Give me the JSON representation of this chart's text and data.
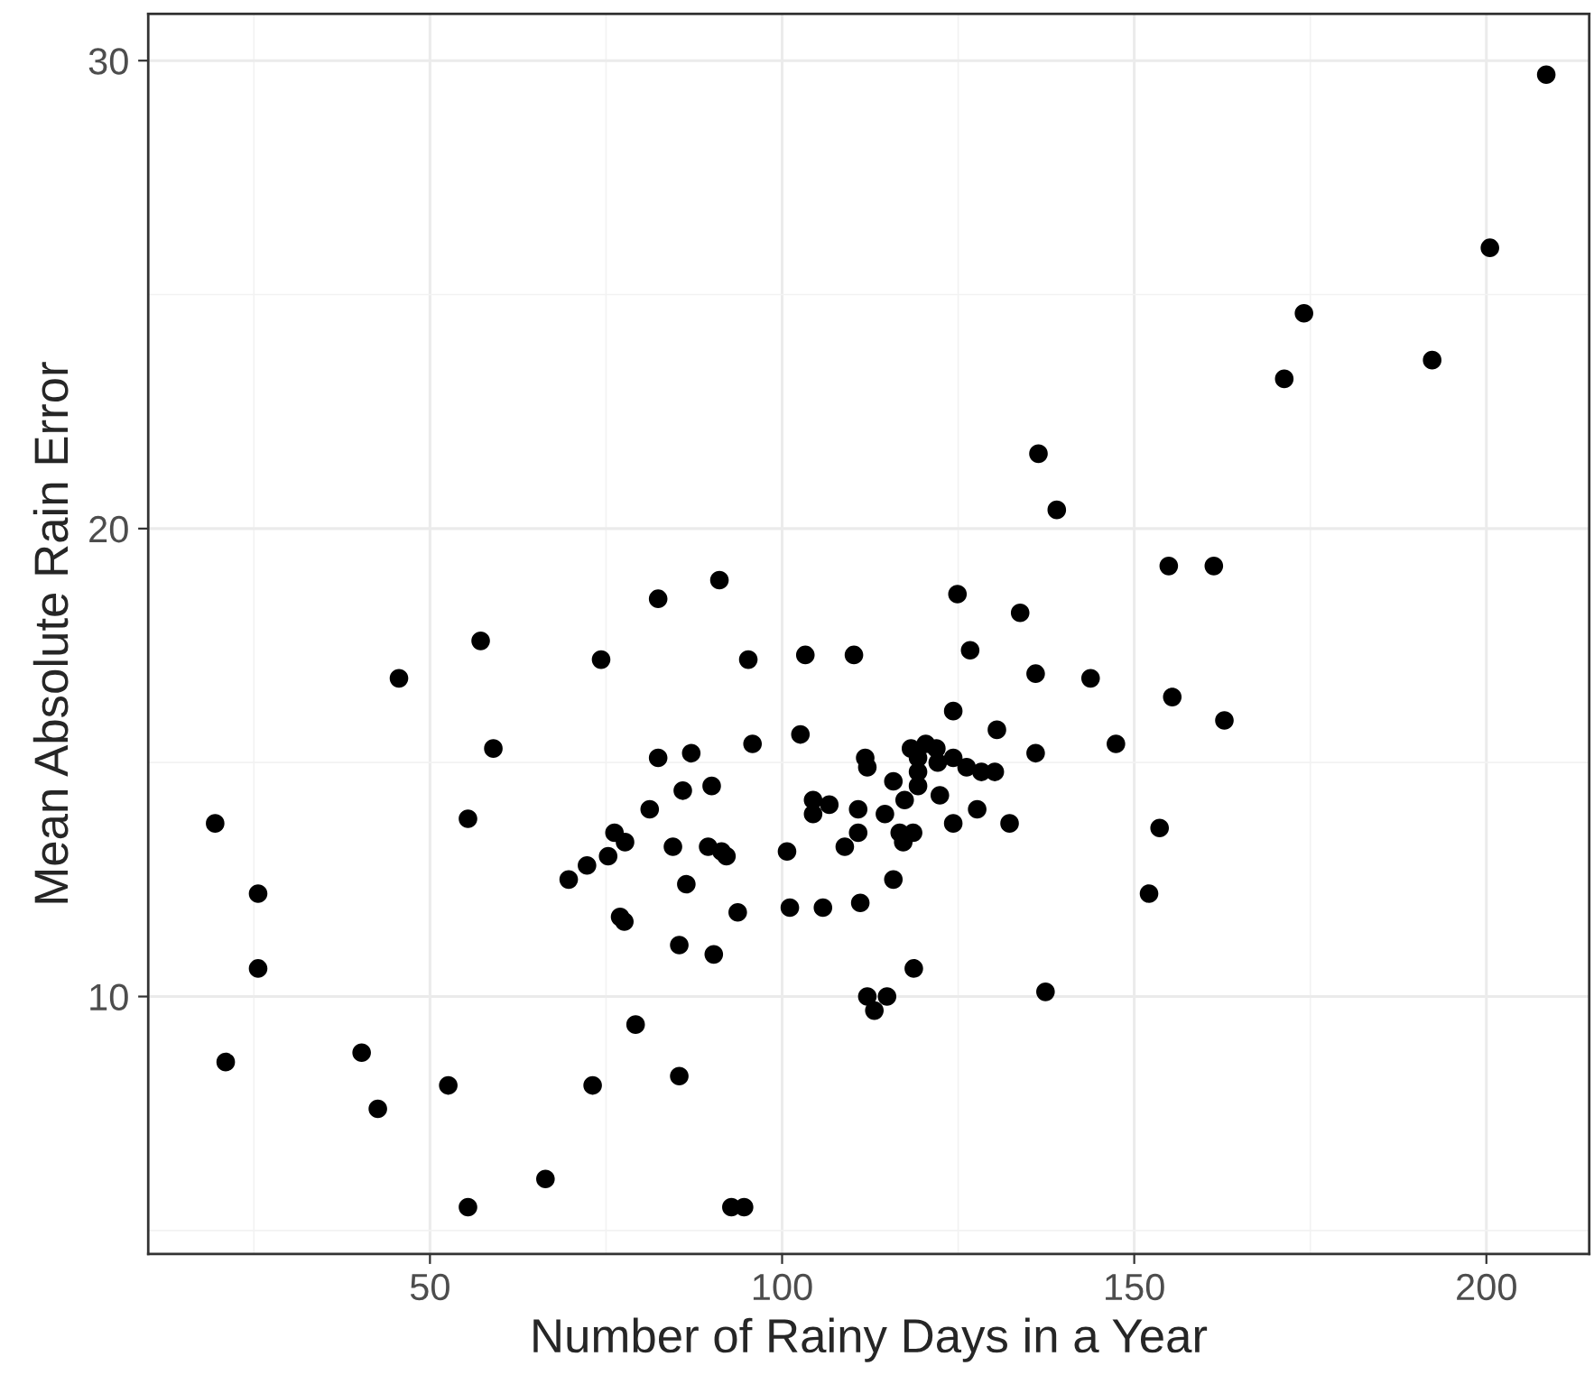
{
  "chart_data": {
    "type": "scatter",
    "xlabel": "Number of Rainy Days in a Year",
    "ylabel": "Mean Absolute Rain Error",
    "x": [
      19.5,
      21.0,
      25.6,
      25.6,
      40.3,
      42.6,
      45.6,
      52.6,
      55.4,
      55.4,
      57.2,
      59.0,
      66.4,
      69.7,
      72.3,
      73.1,
      74.3,
      75.3,
      76.2,
      77.7,
      77.0,
      77.6,
      79.2,
      81.2,
      82.4,
      82.4,
      84.5,
      85.4,
      85.4,
      85.9,
      86.4,
      87.1,
      89.5,
      90.0,
      90.3,
      91.1,
      91.4,
      92.1,
      92.8,
      94.6,
      93.7,
      95.2,
      95.8,
      100.7,
      101.1,
      102.6,
      103.3,
      104.4,
      104.4,
      105.8,
      106.7,
      108.9,
      110.2,
      110.8,
      110.8,
      111.1,
      111.8,
      112.1,
      112.1,
      113.1,
      114.9,
      114.6,
      115.8,
      115.8,
      116.7,
      117.2,
      117.4,
      118.3,
      118.6,
      119.3,
      119.3,
      119.3,
      120.4,
      121.9,
      122.1,
      122.4,
      124.3,
      124.3,
      124.3,
      124.9,
      126.2,
      126.7,
      127.7,
      128.3,
      130.2,
      130.5,
      132.3,
      133.8,
      136.0,
      136.0,
      118.7,
      136.4,
      139.0,
      137.4,
      143.8,
      147.4,
      154.9,
      161.3,
      155.4,
      152.1,
      153.6,
      162.8,
      171.3,
      174.1,
      192.3,
      200.5,
      208.5
    ],
    "values": [
      13.7,
      8.6,
      12.2,
      10.6,
      8.8,
      7.6,
      16.8,
      8.1,
      13.8,
      5.5,
      17.6,
      15.3,
      6.1,
      12.5,
      12.8,
      8.1,
      17.2,
      13.0,
      13.5,
      13.3,
      11.7,
      11.6,
      9.4,
      14.0,
      15.1,
      18.5,
      13.2,
      11.1,
      8.3,
      14.4,
      12.4,
      15.2,
      13.2,
      14.5,
      10.9,
      18.9,
      13.1,
      13.0,
      5.5,
      5.5,
      11.8,
      17.2,
      15.4,
      13.1,
      11.9,
      15.6,
      17.3,
      14.2,
      13.9,
      11.9,
      14.1,
      13.2,
      17.3,
      14.0,
      13.5,
      12.0,
      15.1,
      14.9,
      10.0,
      9.7,
      10.0,
      13.9,
      14.6,
      12.5,
      13.5,
      13.3,
      14.2,
      15.3,
      13.5,
      15.1,
      14.8,
      14.5,
      15.4,
      15.3,
      15.0,
      14.3,
      16.1,
      15.1,
      13.7,
      18.6,
      14.9,
      17.4,
      14.0,
      14.8,
      14.8,
      15.7,
      13.7,
      18.2,
      16.9,
      15.2,
      10.6,
      21.6,
      20.4,
      10.1,
      16.8,
      15.4,
      19.2,
      19.2,
      16.4,
      12.2,
      13.6,
      15.9,
      23.2,
      24.6,
      23.6,
      26.0,
      29.7
    ],
    "color": "#000000",
    "marker": "circle",
    "xlim": [
      10,
      214.6
    ],
    "ylim": [
      4.5,
      31
    ],
    "xticks": [
      {
        "value": 25,
        "label": null
      },
      50,
      {
        "value": 75,
        "label": null
      },
      100,
      {
        "value": 125,
        "label": null
      },
      150,
      {
        "value": 175,
        "label": null
      },
      200
    ],
    "yticks": [
      {
        "value": 5,
        "label": null
      },
      10,
      {
        "value": 15,
        "label": null
      },
      20,
      {
        "value": 25,
        "label": null
      },
      30
    ],
    "grid": true
  }
}
